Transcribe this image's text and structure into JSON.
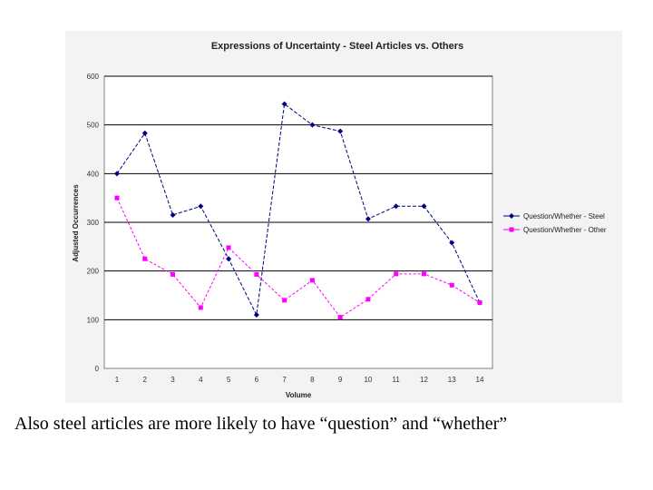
{
  "caption": "Also steel articles are more likely to have “question” and “whether”",
  "chart_data": {
    "type": "line",
    "title": "Expressions of Uncertainty - Steel Articles vs. Others",
    "xlabel": "Volume",
    "ylabel": "Adjusted Occurrences",
    "categories": [
      "1",
      "2",
      "3",
      "4",
      "5",
      "6",
      "7",
      "8",
      "9",
      "10",
      "11",
      "12",
      "13",
      "14"
    ],
    "ylim": [
      0,
      600
    ],
    "yticks": [
      "0",
      "100",
      "200",
      "300",
      "400",
      "500",
      "600"
    ],
    "grid": true,
    "legend_position": "right",
    "series": [
      {
        "name": "Question/Whether - Steel",
        "color": "#000080",
        "marker": "diamond",
        "values": [
          400,
          483,
          315,
          333,
          225,
          110,
          543,
          500,
          487,
          307,
          333,
          333,
          258,
          135
        ]
      },
      {
        "name": "Question/Whether - Other",
        "color": "#ff00ff",
        "marker": "square",
        "values": [
          350,
          225,
          193,
          125,
          248,
          193,
          140,
          181,
          105,
          142,
          194,
          194,
          171,
          135
        ]
      }
    ]
  }
}
